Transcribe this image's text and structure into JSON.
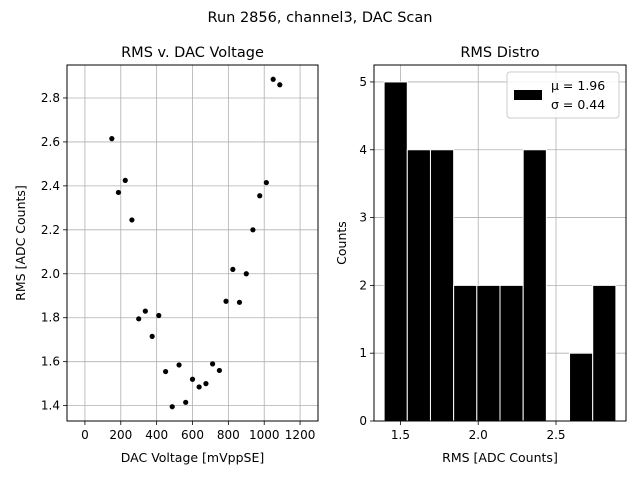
{
  "suptitle": "Run 2856, channel3, DAC Scan",
  "chart_data": [
    {
      "type": "scatter",
      "title": "RMS v. DAC Voltage",
      "xlabel": "DAC Voltage [mVppSE]",
      "ylabel": "RMS [ADC Counts]",
      "xlim": [
        -100,
        1300
      ],
      "ylim": [
        1.33,
        2.95
      ],
      "xticks": [
        0,
        200,
        400,
        600,
        800,
        1000,
        1200
      ],
      "xtick_labels": [
        "0",
        "200",
        "400",
        "600",
        "800",
        "1000",
        "1200"
      ],
      "yticks": [
        1.4,
        1.6,
        1.8,
        2.0,
        2.2,
        2.4,
        2.6,
        2.8
      ],
      "ytick_labels": [
        "1.4",
        "1.6",
        "1.8",
        "2.0",
        "2.2",
        "2.4",
        "2.6",
        "2.8"
      ],
      "grid": true,
      "marker_color": "#000000",
      "x": [
        150,
        187,
        225,
        262,
        300,
        337,
        375,
        412,
        450,
        487,
        525,
        562,
        600,
        637,
        675,
        712,
        750,
        787,
        825,
        862,
        900,
        937,
        975,
        1012,
        1050,
        1087
      ],
      "y": [
        2.615,
        2.37,
        2.425,
        2.245,
        1.795,
        1.83,
        1.715,
        1.81,
        1.555,
        1.395,
        1.585,
        1.415,
        1.52,
        1.485,
        1.5,
        1.59,
        1.56,
        1.875,
        2.02,
        1.87,
        2.0,
        2.2,
        2.355,
        2.415,
        2.885,
        2.86
      ]
    },
    {
      "type": "bar",
      "title": "RMS Distro",
      "xlabel": "RMS [ADC Counts]",
      "ylabel": "Counts",
      "xlim": [
        1.33,
        2.95
      ],
      "ylim": [
        0,
        5.25
      ],
      "xticks": [
        1.5,
        2.0,
        2.5
      ],
      "xtick_labels": [
        "1.5",
        "2.0",
        "2.5"
      ],
      "yticks": [
        0,
        1,
        2,
        3,
        4,
        5
      ],
      "ytick_labels": [
        "0",
        "1",
        "2",
        "3",
        "4",
        "5"
      ],
      "grid": true,
      "bar_color": "#000000",
      "bin_edges": [
        1.395,
        1.544,
        1.693,
        1.842,
        1.991,
        2.14,
        2.289,
        2.438,
        2.587,
        2.736,
        2.885
      ],
      "values": [
        5,
        4,
        4,
        2,
        2,
        2,
        4,
        0,
        1,
        2
      ],
      "legend_placement": "top-right",
      "legend_lines": [
        "μ = 1.96",
        "σ = 0.44"
      ]
    }
  ]
}
